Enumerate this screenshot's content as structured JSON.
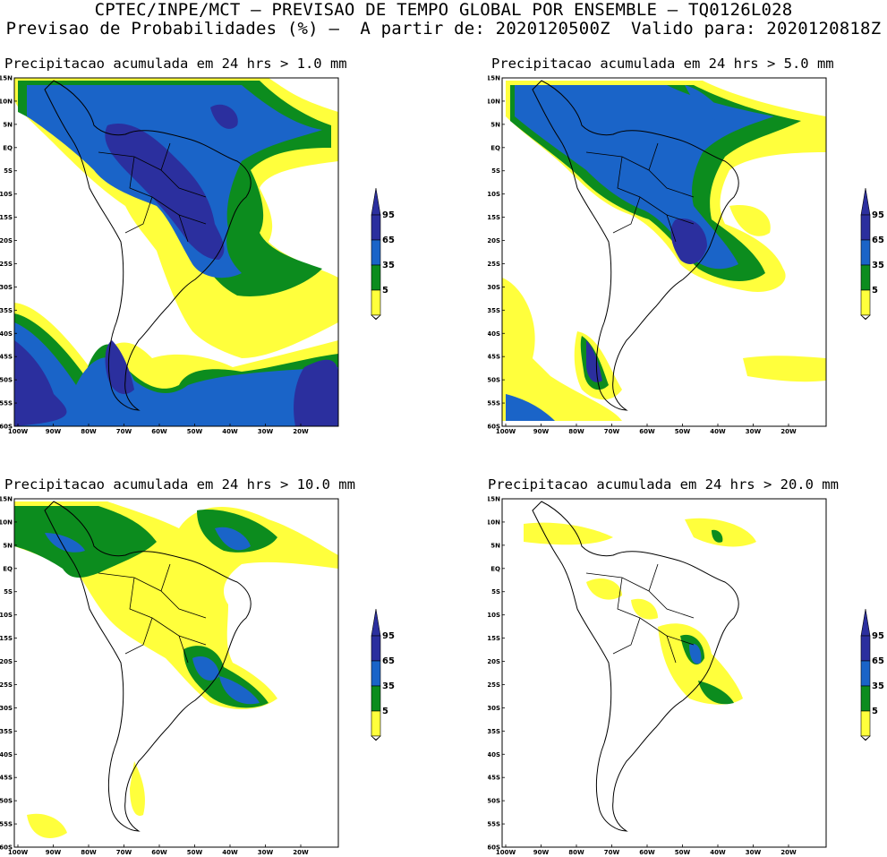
{
  "header": {
    "line1": "CPTEC/INPE/MCT – PREVISAO DE TEMPO GLOBAL POR ENSEMBLE – TQ0126L028",
    "line2": "Previsao de Probabilidades (%) –  A partir de: 2020120500Z  Valido para: 2020120818Z"
  },
  "panels": [
    {
      "title": "Precipitacao acumulada em 24 hrs > 1.0 mm"
    },
    {
      "title": "Precipitacao acumulada em 24 hrs > 5.0 mm"
    },
    {
      "title": "Precipitacao acumulada em 24 hrs > 10.0 mm"
    },
    {
      "title": "Precipitacao acumulada em 24 hrs > 20.0 mm"
    }
  ],
  "axes": {
    "lat_labels": [
      "15N",
      "10N",
      "5N",
      "EQ",
      "5S",
      "10S",
      "15S",
      "20S",
      "25S",
      "30S",
      "35S",
      "40S",
      "45S",
      "50S",
      "55S",
      "60S"
    ],
    "lon_labels": [
      "100W",
      "90W",
      "80W",
      "70W",
      "60W",
      "50W",
      "40W",
      "30W",
      "20W"
    ]
  },
  "colorbar": {
    "labels": [
      "95",
      "65",
      "35",
      "5"
    ],
    "colors": {
      "c95": "#2b2f9e",
      "c65": "#1a64c8",
      "c35": "#0c8c1e",
      "c5": "#ffff3c"
    }
  }
}
